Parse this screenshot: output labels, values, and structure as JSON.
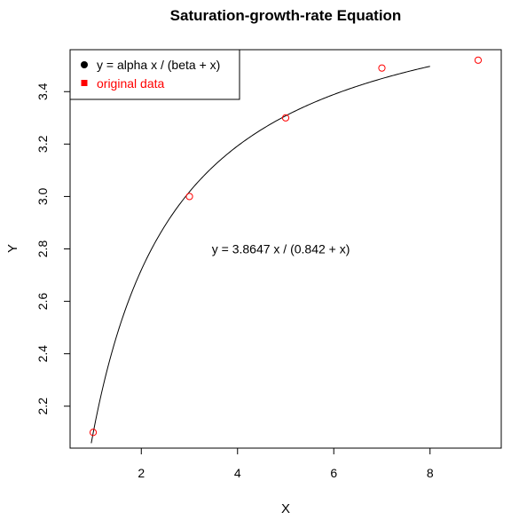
{
  "chart_data": {
    "type": "scatter",
    "title": "Saturation-growth-rate Equation",
    "xlabel": "X",
    "ylabel": "Y",
    "xlim": [
      0.52,
      9.48
    ],
    "ylim": [
      2.04,
      3.56
    ],
    "x_ticks": [
      2,
      4,
      6,
      8
    ],
    "y_ticks": [
      2.2,
      2.4,
      2.6,
      2.8,
      3.0,
      3.2,
      3.4
    ],
    "x_tick_labels": [
      "2",
      "4",
      "6",
      "8"
    ],
    "y_tick_labels": [
      "2.2",
      "2.4",
      "2.6",
      "2.8",
      "3.0",
      "3.2",
      "3.4"
    ],
    "grid": false,
    "legend_position": "top-left",
    "legend": [
      {
        "label": "y = alpha x / (beta + x)",
        "color": "#000000",
        "marker": "filled-circle"
      },
      {
        "label": "original data",
        "color": "#ff0000",
        "marker": "filled-square"
      }
    ],
    "series": [
      {
        "type": "scatter",
        "color": "#ff0000",
        "marker": "open-circle",
        "x": [
          1,
          3,
          5,
          7,
          9
        ],
        "y": [
          2.1,
          3.0,
          3.3,
          3.49,
          3.52
        ]
      },
      {
        "type": "line",
        "color": "#000000",
        "model": {
          "alpha": 3.8647,
          "beta": 0.842,
          "x_range": [
            0.96,
            8
          ]
        }
      }
    ],
    "annotation": {
      "text": "y = 3.8647 x / (0.842 + x)",
      "x": 4.9,
      "y": 2.8
    }
  }
}
